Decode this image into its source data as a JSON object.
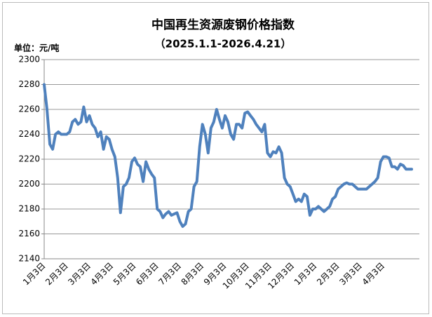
{
  "chart_data": {
    "type": "line",
    "title": "中国再生资源废钢价格指数",
    "subtitle": "（2025.1.1-2026.4.21）",
    "unit_label": "单位：元/吨",
    "categories": [
      "1月3日",
      null,
      null,
      null,
      null,
      null,
      null,
      null,
      "2月3日",
      null,
      null,
      null,
      null,
      null,
      null,
      null,
      "3月3日",
      null,
      null,
      null,
      null,
      null,
      null,
      null,
      "4月3日",
      null,
      null,
      null,
      null,
      null,
      null,
      null,
      "5月3日",
      null,
      null,
      null,
      null,
      null,
      null,
      null,
      "6月3日",
      null,
      null,
      null,
      null,
      null,
      null,
      null,
      "7月3日",
      null,
      null,
      null,
      null,
      null,
      null,
      null,
      "8月3日",
      null,
      null,
      null,
      null,
      null,
      null,
      null,
      "9月3日",
      null,
      null,
      null,
      null,
      null,
      null,
      null,
      "10月3日",
      null,
      null,
      null,
      null,
      null,
      null,
      null,
      "11月3日",
      null,
      null,
      null,
      null,
      null,
      null,
      null,
      "12月3日",
      null,
      null,
      null,
      null,
      null,
      null,
      null,
      "1月3日",
      null,
      null,
      null,
      null,
      null,
      null,
      null,
      "2月3日",
      null,
      null,
      null,
      null,
      null,
      null,
      null,
      "3月3日",
      null,
      null,
      null,
      null,
      null,
      null,
      null,
      "4月3日",
      null,
      null,
      null,
      null,
      null,
      null,
      null,
      null,
      null,
      null
    ],
    "values": [
      2280,
      2260,
      2232,
      2228,
      2240,
      2242,
      2240,
      2240,
      2240,
      2242,
      2250,
      2252,
      2248,
      2250,
      2262,
      2250,
      2255,
      2248,
      2245,
      2238,
      2242,
      2228,
      2238,
      2236,
      2228,
      2222,
      2205,
      2177,
      2198,
      2200,
      2205,
      2218,
      2221,
      2216,
      2214,
      2202,
      2218,
      2212,
      2208,
      2205,
      2180,
      2178,
      2173,
      2176,
      2178,
      2175,
      2176,
      2177,
      2170,
      2166,
      2168,
      2178,
      2180,
      2198,
      2202,
      2230,
      2248,
      2240,
      2225,
      2245,
      2250,
      2260,
      2252,
      2245,
      2255,
      2250,
      2240,
      2236,
      2248,
      2248,
      2245,
      2257,
      2258,
      2255,
      2252,
      2248,
      2245,
      2242,
      2248,
      2225,
      2222,
      2226,
      2225,
      2230,
      2225,
      2205,
      2200,
      2198,
      2192,
      2186,
      2188,
      2186,
      2192,
      2190,
      2175,
      2180,
      2180,
      2182,
      2180,
      2178,
      2180,
      2182,
      2188,
      2190,
      2196,
      2198,
      2200,
      2201,
      2200,
      2200,
      2198,
      2196,
      2196,
      2196,
      2196,
      2198,
      2200,
      2202,
      2205,
      2218,
      2222,
      2222,
      2221,
      2214,
      2214,
      2212,
      2216,
      2215,
      2212,
      2212,
      2212
    ],
    "color": "#4f81bd",
    "ylim": [
      2140,
      2300
    ],
    "yticks": [
      2140,
      2160,
      2180,
      2200,
      2220,
      2240,
      2260,
      2280,
      2300
    ],
    "grid": true
  }
}
